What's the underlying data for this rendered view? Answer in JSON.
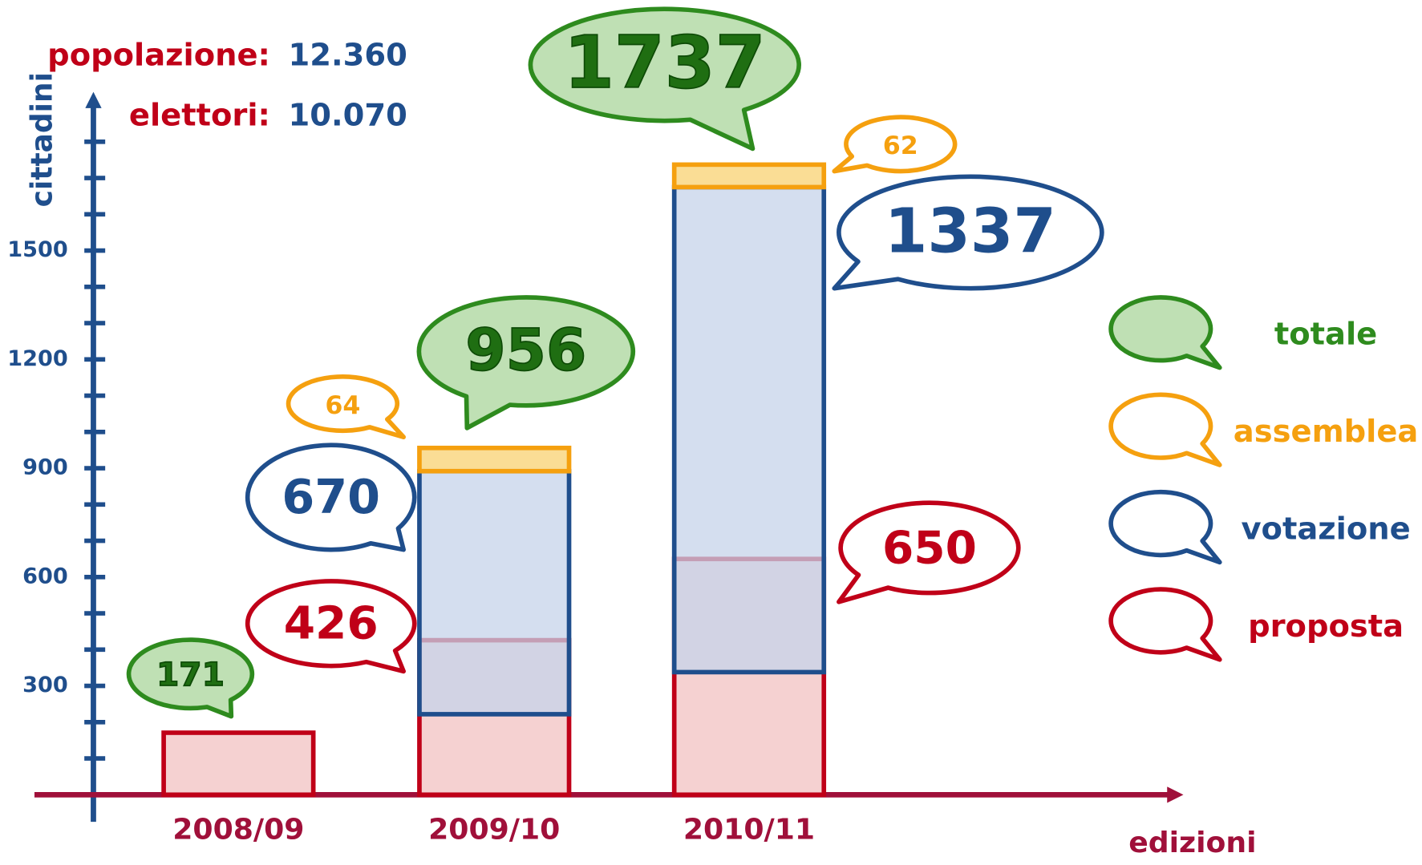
{
  "chart_data": {
    "type": "bubble-bar",
    "annotations": [
      {
        "label": "popolazione:",
        "value": "12.360"
      },
      {
        "label": "elettori:",
        "value": "10.070"
      }
    ],
    "y_label": "cittadini",
    "x_label": "edizioni",
    "categories": [
      "2008/09",
      "2009/10",
      "2010/11"
    ],
    "series": [
      {
        "name": "proposta",
        "color": "#c00018",
        "values": [
          171,
          426,
          650
        ]
      },
      {
        "name": "votazione",
        "color": "#1f4e8c",
        "values": [
          null,
          670,
          1337
        ]
      },
      {
        "name": "assemblea",
        "color": "#f5a00f",
        "values": [
          null,
          64,
          62
        ]
      },
      {
        "name": "totale",
        "color": "#2e8b1e",
        "values": [
          171,
          956,
          1737
        ]
      }
    ],
    "ylim": [
      0,
      1930
    ],
    "yticks": [
      300,
      600,
      900,
      1200,
      1500
    ],
    "yticks_minor": [
      100,
      200,
      400,
      500,
      700,
      800,
      1000,
      1100,
      1300,
      1400,
      1600,
      1700,
      1800
    ]
  }
}
